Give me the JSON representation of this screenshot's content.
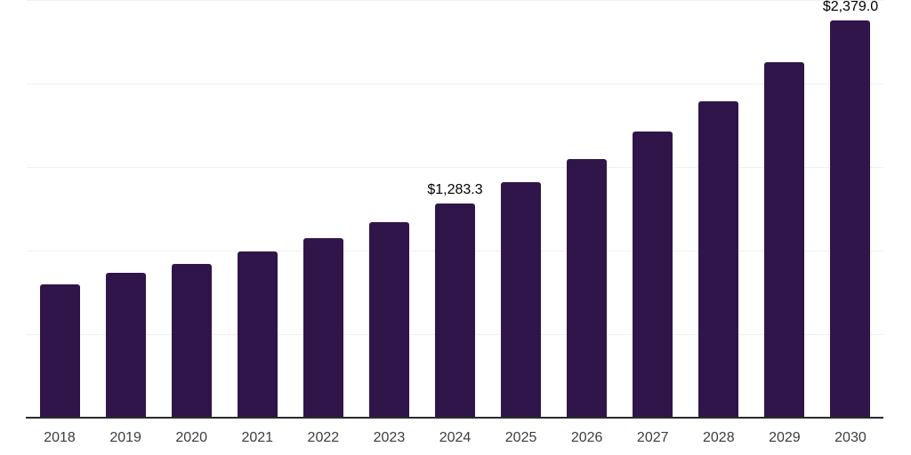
{
  "chart_data": {
    "type": "bar",
    "title": "",
    "xlabel": "",
    "ylabel": "",
    "categories": [
      "2018",
      "2019",
      "2020",
      "2021",
      "2022",
      "2023",
      "2024",
      "2025",
      "2026",
      "2027",
      "2028",
      "2029",
      "2030"
    ],
    "values": [
      798,
      867,
      920,
      995,
      1074,
      1170,
      1283.3,
      1410,
      1548,
      1713,
      1894,
      2128,
      2379
    ],
    "data_labels": [
      "",
      "",
      "",
      "",
      "",
      "",
      "$1,283.3",
      "",
      "",
      "",
      "",
      "",
      "$2,379.0"
    ],
    "ylim": [
      0,
      2500
    ],
    "gridline_step": 500,
    "grid": true,
    "legend_position": "none",
    "colors": {
      "bar": "#30154a",
      "gridline": "#f0f0f0",
      "axis_line": "#2b2b2b",
      "x_tick_label": "#3d3d3d",
      "data_label": "#000000",
      "background": "#ffffff"
    }
  }
}
